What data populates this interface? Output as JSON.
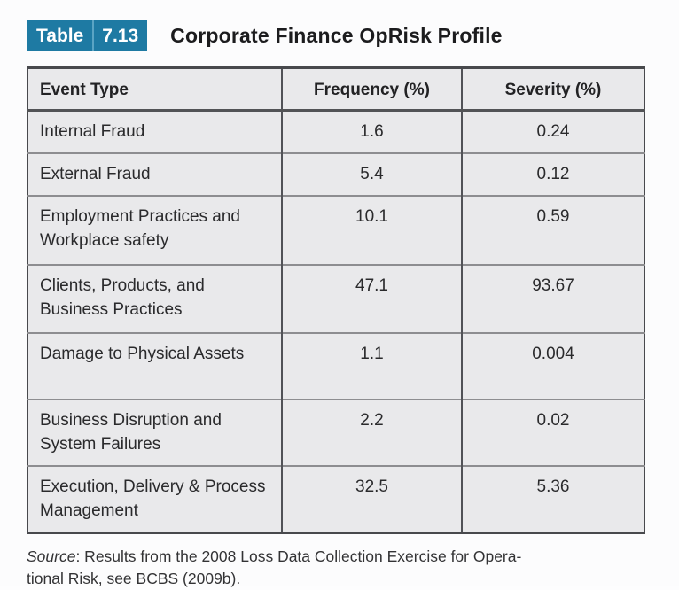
{
  "title": {
    "badge_label": "Table",
    "badge_number": "7.13",
    "text": "Corporate Finance OpRisk Profile"
  },
  "table": {
    "headers": [
      "Event Type",
      "Frequency (%)",
      "Severity (%)"
    ],
    "rows": [
      {
        "event": "Internal Fraud",
        "frequency": "1.6",
        "severity": "0.24"
      },
      {
        "event": "External Fraud",
        "frequency": "5.4",
        "severity": "0.12"
      },
      {
        "event": "Employment Practices and Workplace safety",
        "frequency": "10.1",
        "severity": "0.59"
      },
      {
        "event": "Clients, Products, and Business Practices",
        "frequency": "47.1",
        "severity": "93.67"
      },
      {
        "event": "Damage to Physical Assets",
        "frequency": "1.1",
        "severity": "0.004"
      },
      {
        "event": "Business Disruption and System Failures",
        "frequency": "2.2",
        "severity": "0.02"
      },
      {
        "event": "Execution, Delivery & Process Management",
        "frequency": "32.5",
        "severity": "5.36"
      }
    ]
  },
  "source": {
    "label": "Source",
    "line1": ": Results from the 2008 Loss Data Collection Exercise for Opera-",
    "line2": "tional Risk, see BCBS (2009b)."
  },
  "colors": {
    "badge_teal": "#1e7aa3",
    "cell_background": "#e9e9eb",
    "outer_border": "#48494d",
    "row_divider": "#8d8d90"
  }
}
